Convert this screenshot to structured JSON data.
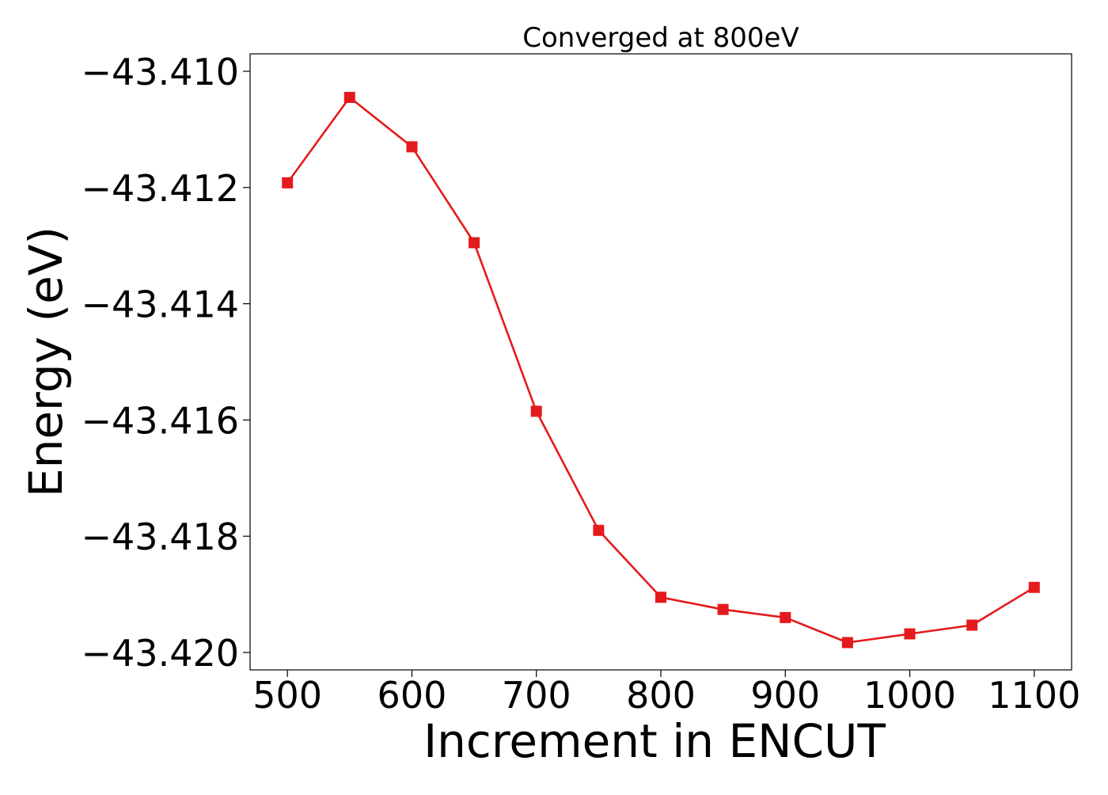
{
  "chart_data": {
    "type": "line",
    "title": "Converged at 800eV",
    "xlabel": "Increment in ENCUT",
    "ylabel": "Energy (eV)",
    "xlim": [
      470,
      1130
    ],
    "ylim": [
      -43.4203,
      -43.4097
    ],
    "xticks": [
      500,
      600,
      700,
      800,
      900,
      1000,
      1100
    ],
    "xtick_labels": [
      "500",
      "600",
      "700",
      "800",
      "900",
      "1000",
      "1100"
    ],
    "yticks": [
      -43.41,
      -43.412,
      -43.414,
      -43.416,
      -43.418,
      -43.42
    ],
    "ytick_labels": [
      "−43.410",
      "−43.412",
      "−43.414",
      "−43.416",
      "−43.418",
      "−43.420"
    ],
    "grid": false,
    "legend": "none",
    "marker": "square",
    "color": "#e41a1c",
    "x": [
      500,
      550,
      600,
      650,
      700,
      750,
      800,
      850,
      900,
      950,
      1000,
      1050,
      1100
    ],
    "y": [
      -43.41192,
      -43.41045,
      -43.4113,
      -43.41295,
      -43.41585,
      -43.4179,
      -43.41905,
      -43.41926,
      -43.4194,
      -43.41983,
      -43.41968,
      -43.41953,
      -43.41888
    ]
  }
}
